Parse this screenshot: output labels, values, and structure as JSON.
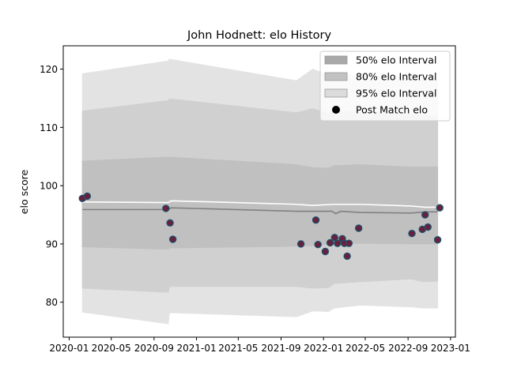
{
  "chart_data": {
    "type": "line",
    "title": "John Hodnett: elo History",
    "xlabel": "",
    "ylabel": "elo score",
    "x_range": [
      "2019-12-15",
      "2023-01-15"
    ],
    "ylim": [
      74,
      124
    ],
    "x_ticks": [
      {
        "date": "2020-01-01",
        "label": "2020-01"
      },
      {
        "date": "2020-05-01",
        "label": "2020-05"
      },
      {
        "date": "2020-09-01",
        "label": "2020-09"
      },
      {
        "date": "2021-01-01",
        "label": "2021-01"
      },
      {
        "date": "2021-05-01",
        "label": "2021-05"
      },
      {
        "date": "2021-09-01",
        "label": "2021-09"
      },
      {
        "date": "2022-01-01",
        "label": "2022-01"
      },
      {
        "date": "2022-05-01",
        "label": "2022-05"
      },
      {
        "date": "2022-09-01",
        "label": "2022-09"
      },
      {
        "date": "2023-01-01",
        "label": "2023-01"
      }
    ],
    "y_ticks": [
      80,
      90,
      100,
      110,
      120
    ],
    "grid": false,
    "legend_position": "top-right",
    "legend": [
      {
        "label": "50% elo Interval",
        "kind": "patch",
        "color": "#a8a8a8"
      },
      {
        "label": "80% elo Interval",
        "kind": "patch",
        "color": "#c2c2c2"
      },
      {
        "label": "95% elo Interval",
        "kind": "patch",
        "color": "#dcdcdc"
      },
      {
        "label": "Post Match elo",
        "kind": "marker",
        "color": "#000000"
      }
    ],
    "bands": [
      {
        "name": "95% elo Interval",
        "color": "#e3e3e3",
        "x": [
          "2020-02-08",
          "2020-10-12",
          "2020-10-15",
          "2021-10-15",
          "2021-12-01",
          "2022-01-15",
          "2022-02-01",
          "2022-04-15",
          "2022-09-10",
          "2022-10-15",
          "2022-11-25"
        ],
        "upper": [
          119.2,
          121.4,
          121.7,
          118.0,
          120.0,
          119.0,
          119.4,
          118.8,
          118.6,
          118.4,
          118.3
        ],
        "lower": [
          78.3,
          76.3,
          78.2,
          77.5,
          78.5,
          78.4,
          79.0,
          79.5,
          79.2,
          79.0,
          79.0
        ]
      },
      {
        "name": "80% elo Interval",
        "color": "#d0d0d0",
        "x": [
          "2020-02-08",
          "2020-10-12",
          "2020-10-15",
          "2021-10-15",
          "2021-12-01",
          "2022-01-15",
          "2022-02-01",
          "2022-04-15",
          "2022-09-10",
          "2022-10-15",
          "2022-11-25"
        ],
        "upper": [
          112.8,
          114.6,
          114.9,
          112.5,
          113.2,
          112.4,
          112.8,
          112.7,
          112.3,
          112.0,
          111.9
        ],
        "lower": [
          82.4,
          81.7,
          82.7,
          82.7,
          82.4,
          82.5,
          83.2,
          83.5,
          84.0,
          83.5,
          83.6
        ]
      },
      {
        "name": "50% elo Interval",
        "color": "#c0c0c0",
        "x": [
          "2020-02-08",
          "2020-10-12",
          "2020-10-15",
          "2021-10-15",
          "2021-12-01",
          "2022-01-15",
          "2022-02-01",
          "2022-04-15",
          "2022-09-10",
          "2022-10-15",
          "2022-11-25"
        ],
        "upper": [
          104.2,
          104.9,
          104.9,
          103.6,
          103.1,
          103.0,
          103.4,
          103.6,
          103.2,
          103.2,
          103.2
        ],
        "lower": [
          89.5,
          89.1,
          89.3,
          89.6,
          89.7,
          89.9,
          90.0,
          90.1,
          90.0,
          90.0,
          90.0
        ]
      }
    ],
    "series": [
      {
        "kind": "line",
        "color": "#ffffff",
        "x": [
          "2020-02-08",
          "2020-10-12",
          "2020-10-20",
          "2021-10-15",
          "2021-12-01",
          "2022-02-01",
          "2022-04-15",
          "2022-09-10",
          "2022-10-20",
          "2022-11-25"
        ],
        "values": [
          97.2,
          97.1,
          97.4,
          96.8,
          96.6,
          96.8,
          96.8,
          96.5,
          96.3,
          96.3
        ]
      },
      {
        "kind": "line",
        "color": "#808080",
        "x": [
          "2020-02-08",
          "2020-10-12",
          "2020-10-20",
          "2021-10-15",
          "2021-12-01",
          "2022-01-25",
          "2022-02-05",
          "2022-02-20",
          "2022-04-15",
          "2022-09-10",
          "2022-10-20",
          "2022-11-25"
        ],
        "values": [
          95.9,
          95.9,
          96.2,
          95.6,
          95.6,
          95.6,
          95.2,
          95.6,
          95.4,
          95.3,
          95.5,
          95.5
        ]
      },
      {
        "kind": "scatter",
        "name": "Post Match elo",
        "color": "#6b1f3a",
        "edge_color": "#1f4f6b",
        "x": [
          "2020-02-08",
          "2020-02-22",
          "2020-10-05",
          "2020-10-17",
          "2020-10-25",
          "2021-10-28",
          "2021-12-10",
          "2021-12-16",
          "2022-01-06",
          "2022-01-20",
          "2022-02-02",
          "2022-02-10",
          "2022-02-24",
          "2022-03-02",
          "2022-03-10",
          "2022-03-15",
          "2022-04-12",
          "2022-09-12",
          "2022-10-12",
          "2022-10-20",
          "2022-10-28",
          "2022-11-25",
          "2022-12-01"
        ],
        "values": [
          97.8,
          98.2,
          96.1,
          93.6,
          90.8,
          90.0,
          94.1,
          89.9,
          88.7,
          90.2,
          91.1,
          90.1,
          90.9,
          90.1,
          87.9,
          90.1,
          92.7,
          91.8,
          92.5,
          95.0,
          92.9,
          90.7,
          96.2
        ]
      }
    ]
  }
}
